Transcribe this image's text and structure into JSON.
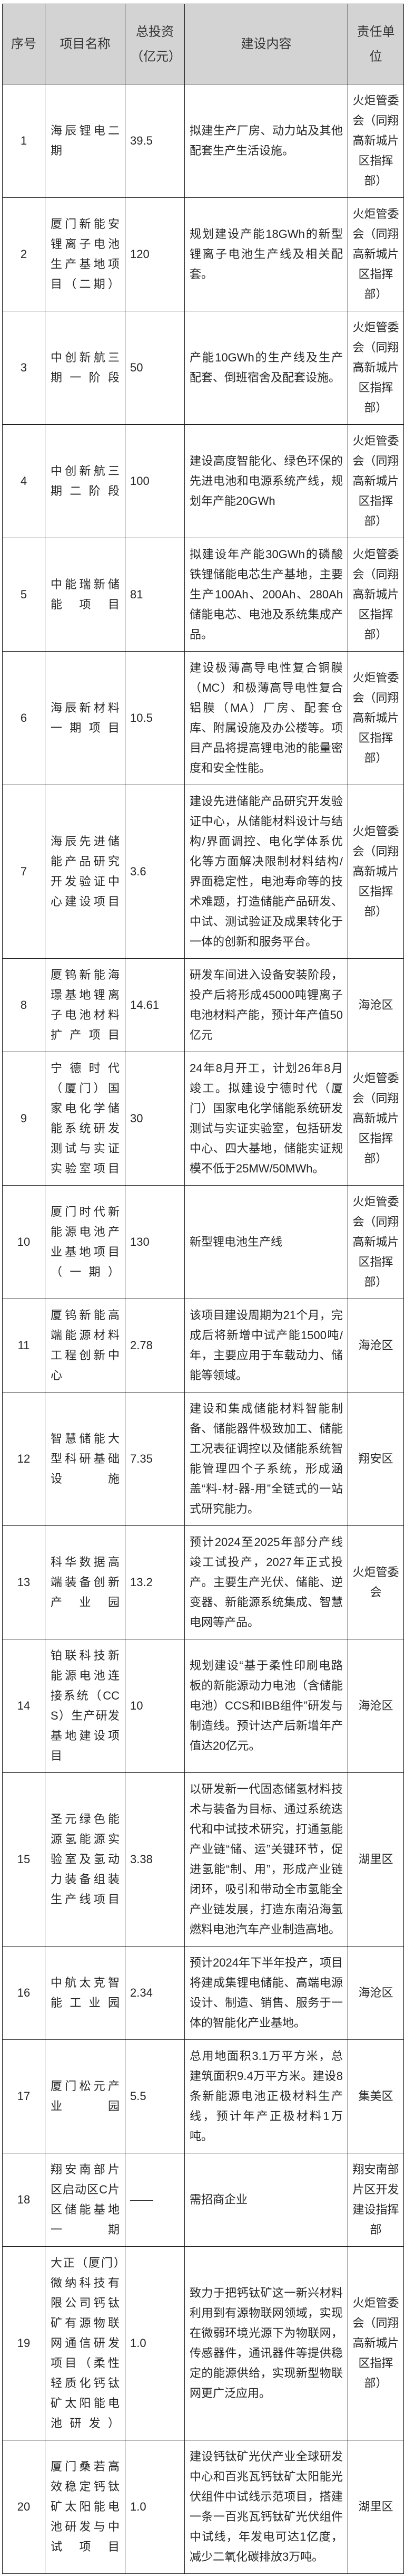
{
  "colors": {
    "header_bg": "#d3d3d3",
    "border": "#1f1f1f",
    "body_text": "#262626",
    "page_bg": "#ffffff"
  },
  "table": {
    "columns": [
      {
        "key": "no",
        "label": "序号"
      },
      {
        "key": "name",
        "label": "项目名称"
      },
      {
        "key": "investment",
        "label": "总投资（亿元）"
      },
      {
        "key": "content",
        "label": "建设内容"
      },
      {
        "key": "unit",
        "label": "责任单位"
      }
    ],
    "rows": [
      {
        "no": "1",
        "name": "海辰锂电二期",
        "investment": "39.5",
        "content": "拟建生产厂房、动力站及其他配套生产生活设施。",
        "unit": "火炬管委会（同翔高新城片区指挥部）"
      },
      {
        "no": "2",
        "name": "厦门新能安锂离子电池生产基地项目（二期）",
        "investment": "120",
        "content": "规划建设产能18GWh的新型锂离子电池生产线及相关配套。",
        "unit": "火炬管委会（同翔高新城片区指挥部）"
      },
      {
        "no": "3",
        "name": "中创新航三期一阶段",
        "investment": "50",
        "content": "产能10GWh的生产线及生产配套、倒班宿舍及配套设施。",
        "unit": "火炬管委会（同翔高新城片区指挥部）"
      },
      {
        "no": "4",
        "name": "中创新航三期二阶段",
        "investment": "100",
        "content": "建设高度智能化、绿色环保的先进电池和电源系统产线，规划年产能20GWh",
        "unit": "火炬管委会（同翔高新城片区指挥部）"
      },
      {
        "no": "5",
        "name": "中能瑞新储能项目",
        "investment": "81",
        "content": "拟建设年产能30GWh的磷酸铁锂储能电芯生产基地，主要生产100Ah、200Ah、280Ah储能电芯、电池及系统集成产品。",
        "unit": "火炬管委会（同翔高新城片区指挥部）"
      },
      {
        "no": "6",
        "name": "海辰新材料一期项目",
        "investment": "10.5",
        "content": "建设极薄高导电性复合铜膜（MC）和极薄高导电性复合铝膜（MA）厂房、配套仓库、附属设施及办公楼等。项目产品将提高锂电池的能量密度和安全性能。",
        "unit": "火炬管委会（同翔高新城片区指挥部）"
      },
      {
        "no": "7",
        "name": "海辰先进储能产品研究开发验证中心建设项目",
        "investment": "3.6",
        "content": "建设先进储能产品研究开发验证中心，从储能材料设计与结构/界面调控、电化学体系优化等方面解决限制材料结构/界面稳定性，电池寿命等的技术难题，打造储能产品研发、中试、测试验证及成果转化于一体的创新和服务平台。",
        "unit": "火炬管委会（同翔高新城片区指挥部）"
      },
      {
        "no": "8",
        "name": "厦钨新能海璟基地锂离子电池材料扩产项目",
        "investment": "14.61",
        "content": "研发车间进入设备安装阶段，投产后将形成45000吨锂离子电池材料产能，预计年产值50亿元",
        "unit": "海沧区"
      },
      {
        "no": "9",
        "name": "宁德时代（厦门）国家电化学储能系统研发测试与实证实验室项目",
        "investment": "30",
        "content": "24年8月开工，计划26年8月竣工。拟建设宁德时代（厦门）国家电化学储能系统研发测试与实证实验室，包括研发中心、四大基地，储能实证规模不低于25MW/50MWh。",
        "unit": "火炬管委会（同翔高新城片区指挥部）"
      },
      {
        "no": "10",
        "name": "厦门时代新能源电池产业基地项目（一期）",
        "investment": "130",
        "content": "新型锂电池生产线",
        "unit": "火炬管委会（同翔高新城片区指挥部）"
      },
      {
        "no": "11",
        "name": "厦钨新能高端能源材料工程创新中心",
        "investment": "2.78",
        "content": "该项目建设周期为21个月，完成后将新增中试产能1500吨/年，主要应用于车载动力、储能等领域。",
        "unit": "海沧区"
      },
      {
        "no": "12",
        "name": "智慧储能大型科研基础设施",
        "investment": "7.35",
        "content": "建设和集成储能材料智能制备、储能器件极致加工、储能工况表征调控以及储能系统智能管理四个子系统，形成涵盖“料-材-器-用”全链式的一站式研究能力。",
        "unit": "翔安区"
      },
      {
        "no": "13",
        "name": "科华数据高端装备创新产业园",
        "investment": "13.2",
        "content": "预计2024至2025年部分产线竣工试投产，2027年正式投产。主要生产光伏、储能、逆变器、新能源系统集成、智慧电网等产品。",
        "unit": "火炬管委会"
      },
      {
        "no": "14",
        "name": "铂联科技新能源电池连接系统（CCS）生产研发基地建设项目",
        "investment": "10",
        "content": "规划建设“基于柔性印刷电路板的新能源动力电池（含储能电池）CCS和IBB组件”研发与制造线。预计达产后新增年产值达20亿元。",
        "unit": "海沧区"
      },
      {
        "no": "15",
        "name": "圣元绿色能源氢能源实验室及氢动力装备组装生产线项目",
        "investment": "3.38",
        "content": "以研发新一代固态储氢材料技术与装备为目标、通过系统迭代和中试技术研究，打通氢能产业链“储、运”关键环节，促进氢能“制、用”，形成产业链闭环，吸引和带动全市氢能全产业链发展，打造东南沿海氢燃料电池汽车产业制造高地。",
        "unit": "湖里区"
      },
      {
        "no": "16",
        "name": "中航太克智能工业园",
        "investment": "2.34",
        "content": "预计2024年下半年投产，项目将建成集锂电储能、高端电源设计、制造、销售、服务于一体的智能化产业基地。",
        "unit": "海沧区"
      },
      {
        "no": "17",
        "name": "厦门松元产业园",
        "investment": "5.5",
        "content": "总用地面积3.1万平方米，总建筑面积9.4万平方米。建设8条新能源电池正极材料生产线，预计年产正极材料1万吨。",
        "unit": "集美区"
      },
      {
        "no": "18",
        "name": "翔安南部片区启动区C片区储能基地一期",
        "investment": "——",
        "content": "需招商企业",
        "unit": "翔安南部片区开发建设指挥部"
      },
      {
        "no": "19",
        "name": "大正（厦门）微纳科技有限公司钙钛矿有源物联网通信研发项目（柔性轻质化钙钛矿太阳能电池研发）",
        "investment": "1.0",
        "content": "致力于把钙钛矿这一新兴材料利用到有源物联网领域，实现在微弱环境光源下为物联网，传感器件，通讯器件等提供稳定的能源供给，实现新型物联网更广泛应用。",
        "unit": "火炬管委会（同翔高新城片区指挥部）"
      },
      {
        "no": "20",
        "name": "厦门桑若高效稳定钙钛矿太阳能电池研发与中试项目",
        "investment": "1.0",
        "content": "建设钙钛矿光伏产业全球研发中心和百兆瓦钙钛矿太阳能光伏组件中试线示范项目，搭建一条一百兆瓦钙钛矿光伏组件中试线，年发电可达1亿度，减少二氧化碳排放3万吨。",
        "unit": "湖里区"
      }
    ]
  }
}
